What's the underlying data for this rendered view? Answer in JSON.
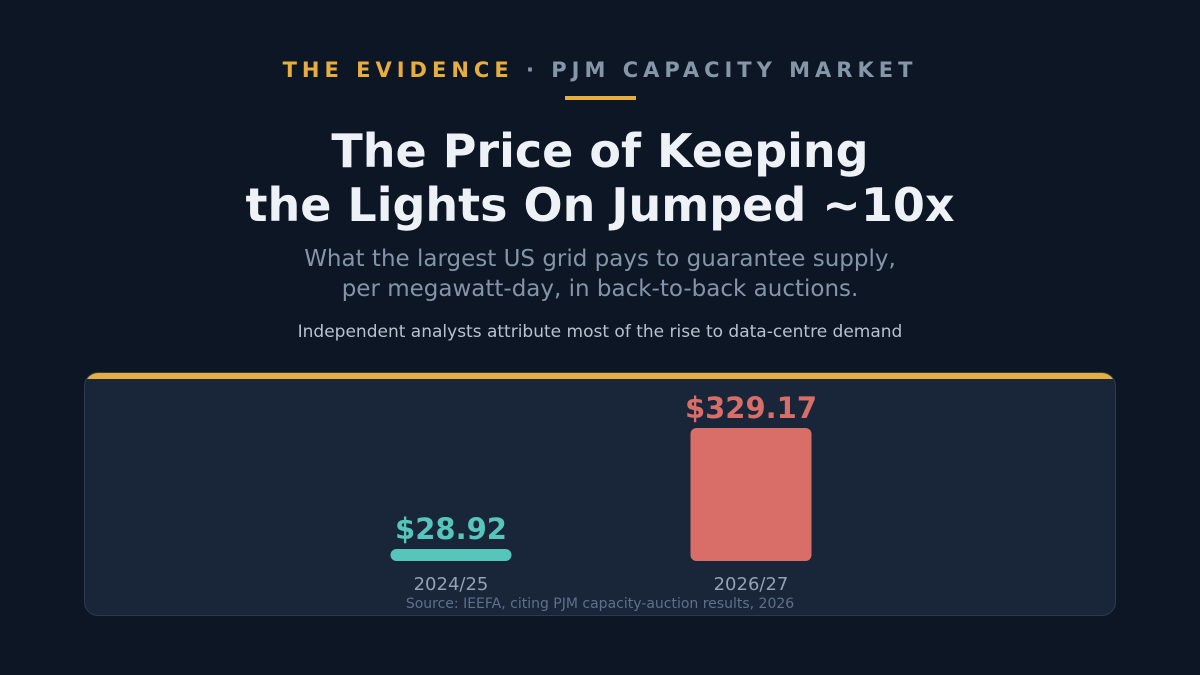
{
  "header": {
    "eyebrow_tag": "THE EVIDENCE",
    "eyebrow_separator": "·",
    "eyebrow_topic": "PJM CAPACITY MARKET",
    "title_line1": "The Price of Keeping",
    "title_line2": "the Lights On Jumped ~10x",
    "subtitle_line1": "What the largest US grid pays to guarantee supply,",
    "subtitle_line2": "per megawatt-day, in back-to-back auctions.",
    "note": "Independent analysts attribute most of the rise to data-centre demand"
  },
  "source": "Source: IEEFA, citing PJM capacity-auction results, 2026",
  "colors": {
    "accent": "#e8ad3f",
    "bar_low": "#56c6bd",
    "bar_high": "#d86e67"
  },
  "chart_data": {
    "type": "bar",
    "categories": [
      "2024/25",
      "2026/27"
    ],
    "values": [
      28.92,
      329.17
    ],
    "value_labels": [
      "$28.92",
      "$329.17"
    ],
    "ylim": [
      0,
      329.17
    ],
    "grid": false
  }
}
